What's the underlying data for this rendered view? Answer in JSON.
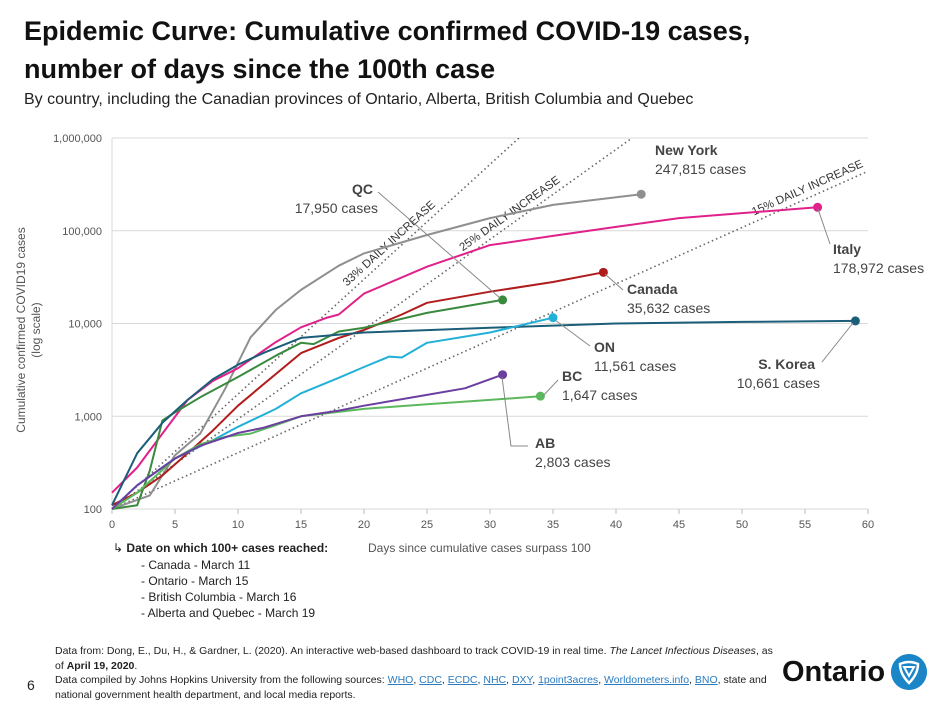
{
  "title": "Epidemic Curve: Cumulative confirmed COVID-19 cases, number of days since the 100th case",
  "subtitle": "By country, including the Canadian provinces of Ontario, Alberta, British Columbia and Quebec",
  "page_number": "6",
  "logo_text": "Ontario",
  "notes": {
    "heading": "Date on which 100+ cases reached:",
    "items": [
      "- Canada - March 11",
      "- Ontario - March 15",
      "- British Columbia - March 16",
      "- Alberta and Quebec - March 19"
    ]
  },
  "footer": {
    "line1_a": "Data from: Dong, E., Du, H., & Gardner, L. (2020). An interactive web-based dashboard to track COVID-19 in real time. ",
    "line1_italic": "The Lancet Infectious Diseases",
    "line1_b": ", as of ",
    "line1_date": "April 19, 2020",
    "line1_end": ".",
    "line2_a": "Data compiled by Johns Hopkins University from the following sources: ",
    "links": [
      "WHO",
      "CDC",
      "ECDC",
      "NHC",
      "DXY",
      "1point3acres",
      "Worldometers.info",
      "BNO"
    ],
    "line2_b": ", state and national government health department, and local media reports."
  },
  "chart_data": {
    "type": "line",
    "title": "Epidemic Curve: Cumulative confirmed COVID-19 cases, number of days since the 100th case",
    "xlabel": "Days since cumulative cases surpass 100",
    "ylabel": "Cumulative confirmed COVID19 cases",
    "ylabel_note": "(log scale)",
    "yscale": "log",
    "xlim": [
      0,
      60
    ],
    "ylim": [
      100,
      1000000
    ],
    "xticks": [
      0,
      5,
      10,
      15,
      20,
      25,
      30,
      35,
      40,
      45,
      50,
      55,
      60
    ],
    "yticks": [
      100,
      1000,
      10000,
      100000,
      1000000
    ],
    "ytick_labels": [
      "100",
      "1,000",
      "10,000",
      "100,000",
      "1,000,000"
    ],
    "grid": "horizontal",
    "series": [
      {
        "name": "New York",
        "label": "247,815 cases",
        "color": "#8f8f8f",
        "x": [
          0,
          3,
          5,
          7,
          9,
          11,
          13,
          15,
          18,
          20,
          25,
          30,
          35,
          42
        ],
        "y": [
          100,
          140,
          380,
          650,
          2000,
          7100,
          14000,
          23000,
          42000,
          57000,
          90000,
          137000,
          190000,
          247815
        ]
      },
      {
        "name": "Italy",
        "label": "178,972 cases",
        "color": "#e0218a",
        "x": [
          0,
          2,
          4,
          6,
          8,
          10,
          13,
          15,
          17,
          18,
          20,
          25,
          30,
          35,
          40,
          45,
          50,
          56
        ],
        "y": [
          150,
          280,
          650,
          1500,
          2400,
          3300,
          6300,
          9100,
          11500,
          12500,
          21000,
          41000,
          70000,
          88000,
          110000,
          137000,
          155000,
          178972
        ]
      },
      {
        "name": "Canada",
        "label": "35,632 cases",
        "color": "#b01c1c",
        "x": [
          0,
          2,
          4,
          6,
          8,
          10,
          12,
          15,
          18,
          20,
          23,
          25,
          30,
          35,
          39
        ],
        "y": [
          110,
          150,
          230,
          400,
          700,
          1300,
          2200,
          4800,
          7000,
          8500,
          12500,
          16700,
          22000,
          28000,
          35632
        ]
      },
      {
        "name": "QC",
        "label": "17,950 cases",
        "color": "#3a8a3e",
        "x": [
          0,
          2,
          3,
          4,
          5,
          7,
          10,
          13,
          15,
          16,
          18,
          20,
          25,
          31
        ],
        "y": [
          100,
          110,
          260,
          900,
          1100,
          1600,
          2650,
          4500,
          6200,
          6000,
          8200,
          9000,
          13000,
          17950
        ]
      },
      {
        "name": "S. Korea",
        "label": "10,661 cases",
        "color": "#1b5e79",
        "x": [
          0,
          2,
          4,
          6,
          8,
          10,
          12,
          15,
          20,
          30,
          40,
          50,
          59
        ],
        "y": [
          110,
          400,
          850,
          1500,
          2500,
          3600,
          4800,
          7000,
          8000,
          9000,
          10000,
          10400,
          10661
        ]
      },
      {
        "name": "ON",
        "label": "11,561 cases",
        "color": "#22b0d8",
        "x": [
          0,
          2,
          5,
          8,
          10,
          13,
          15,
          18,
          20,
          22,
          23,
          25,
          30,
          35
        ],
        "y": [
          100,
          180,
          350,
          550,
          770,
          1200,
          1770,
          2600,
          3400,
          4400,
          4300,
          6200,
          8000,
          11561
        ]
      },
      {
        "name": "BC",
        "label": "1,647 cases",
        "color": "#5cb85c",
        "x": [
          0,
          2,
          5,
          7,
          9,
          11,
          13,
          15,
          20,
          25,
          30,
          34
        ],
        "y": [
          100,
          150,
          350,
          500,
          600,
          650,
          800,
          1000,
          1200,
          1350,
          1500,
          1647
        ]
      },
      {
        "name": "AB",
        "label": "2,803 cases",
        "color": "#6b3fa0",
        "x": [
          0,
          2,
          5,
          7,
          10,
          12,
          15,
          18,
          20,
          25,
          28,
          31
        ],
        "y": [
          100,
          180,
          350,
          480,
          660,
          750,
          1000,
          1150,
          1300,
          1700,
          2000,
          2803
        ]
      }
    ],
    "reference_lines": [
      {
        "label": "33% DAILY INCREASE",
        "rate": 0.33
      },
      {
        "label": "25% DAILY INCREASE",
        "rate": 0.25
      },
      {
        "label": "15% DAILY INCREASE",
        "rate": 0.15
      }
    ]
  }
}
